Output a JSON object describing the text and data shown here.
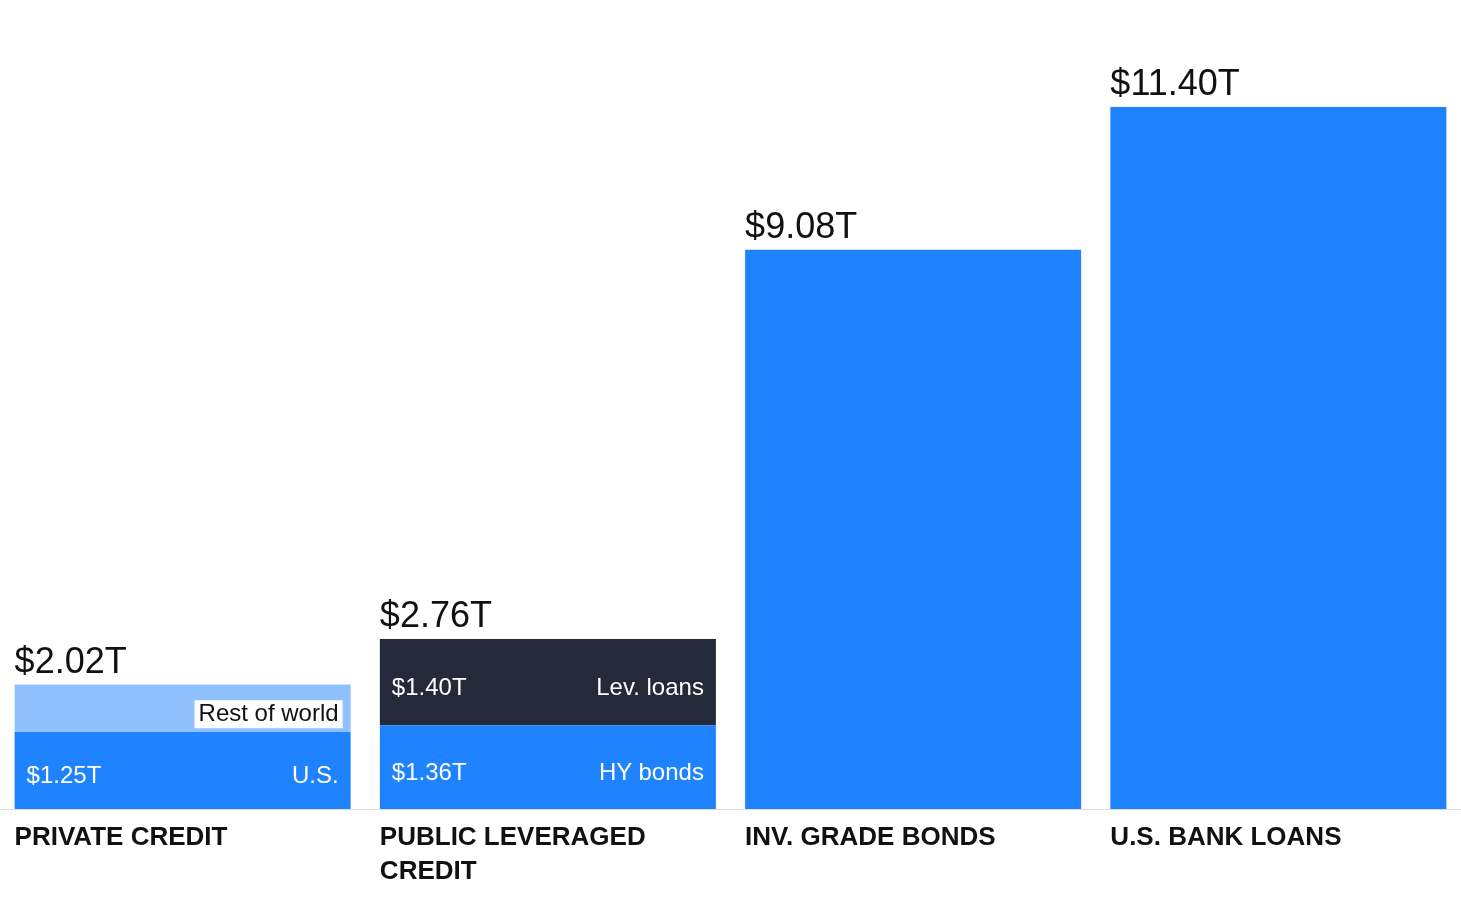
{
  "chart_data": {
    "type": "bar",
    "stacked": true,
    "legend": false,
    "grid": false,
    "tick_labels": "x",
    "categories": [
      "PRIVATE CREDIT",
      "PUBLIC LEVERAGED CREDIT",
      "INV. GRADE BONDS",
      "U.S. BANK LOANS"
    ],
    "series": [
      {
        "name": "U.S.",
        "color": "#1f82ff",
        "values": [
          1.25,
          null,
          null,
          null
        ],
        "value_labels": [
          "$1.25T",
          null,
          null,
          null
        ]
      },
      {
        "name": "HY bonds",
        "color": "#1f82ff",
        "values": [
          null,
          1.36,
          null,
          null
        ],
        "value_labels": [
          null,
          "$1.36T",
          null,
          null
        ]
      },
      {
        "color": "#1f82ff",
        "values": [
          null,
          null,
          9.08,
          11.4
        ]
      },
      {
        "name": "Rest of world",
        "color": "#8fc1ff",
        "values": [
          0.77,
          null,
          null,
          null
        ]
      },
      {
        "name": "Lev. loans",
        "color": "#252a3a",
        "values": [
          null,
          1.4,
          null,
          null
        ],
        "value_labels": [
          null,
          "$1.40T",
          null,
          null
        ]
      }
    ],
    "annotations": [
      {
        "text": "$2.02T",
        "x": "PRIVATE CREDIT",
        "y": 2.02
      },
      {
        "text": "$2.76T",
        "x": "PUBLIC LEVERAGED CREDIT",
        "y": 2.76
      },
      {
        "text": "$9.08T",
        "x": "INV. GRADE BONDS",
        "y": 9.08
      },
      {
        "text": "$11.40T",
        "x": "U.S. BANK LOANS",
        "y": 11.4
      }
    ]
  }
}
